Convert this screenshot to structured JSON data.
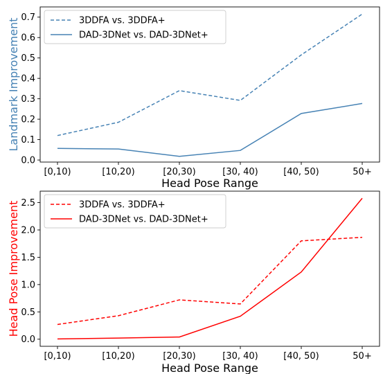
{
  "chart_data": [
    {
      "type": "line",
      "categories": [
        "[0,10)",
        "[10,20)",
        "[20,30)",
        "[30, 40)",
        "[40, 50)",
        "50+"
      ],
      "series": [
        {
          "name": "3DDFA vs. 3DDFA+",
          "values": [
            0.12,
            0.185,
            0.34,
            0.292,
            0.515,
            0.715
          ],
          "color": "#4682b4",
          "style": "dashed"
        },
        {
          "name": "DAD-3DNet vs. DAD-3DNet+",
          "values": [
            0.057,
            0.054,
            0.018,
            0.047,
            0.228,
            0.277
          ],
          "color": "#4682b4",
          "style": "solid"
        }
      ],
      "xlabel": "Head Pose Range",
      "ylabel": "Landmark Improvement",
      "ylabel_color": "#4682b4",
      "ylim": [
        -0.01,
        0.75
      ],
      "yticks": [
        "0.0",
        "0.1",
        "0.2",
        "0.3",
        "0.4",
        "0.5",
        "0.6",
        "0.7"
      ],
      "grid": false,
      "legend_position": "top-left"
    },
    {
      "type": "line",
      "categories": [
        "[0,10)",
        "[10,20)",
        "[20,30)",
        "[30, 40)",
        "[40, 50)",
        "50+"
      ],
      "series": [
        {
          "name": "3DDFA vs. 3DDFA+",
          "values": [
            0.27,
            0.43,
            0.72,
            0.645,
            1.8,
            1.865
          ],
          "color": "#ff0000",
          "style": "dashed"
        },
        {
          "name": "DAD-3DNet vs. DAD-3DNet+",
          "values": [
            0.005,
            0.02,
            0.04,
            0.42,
            1.23,
            2.58
          ],
          "color": "#ff0000",
          "style": "solid"
        }
      ],
      "xlabel": "Head Pose Range",
      "ylabel": "Head Pose Improvement",
      "ylabel_color": "#ff0000",
      "ylim": [
        -0.13,
        2.71
      ],
      "yticks": [
        "0.0",
        "0.5",
        "1.0",
        "1.5",
        "2.0",
        "2.5"
      ],
      "grid": false,
      "legend_position": "top-left"
    }
  ]
}
